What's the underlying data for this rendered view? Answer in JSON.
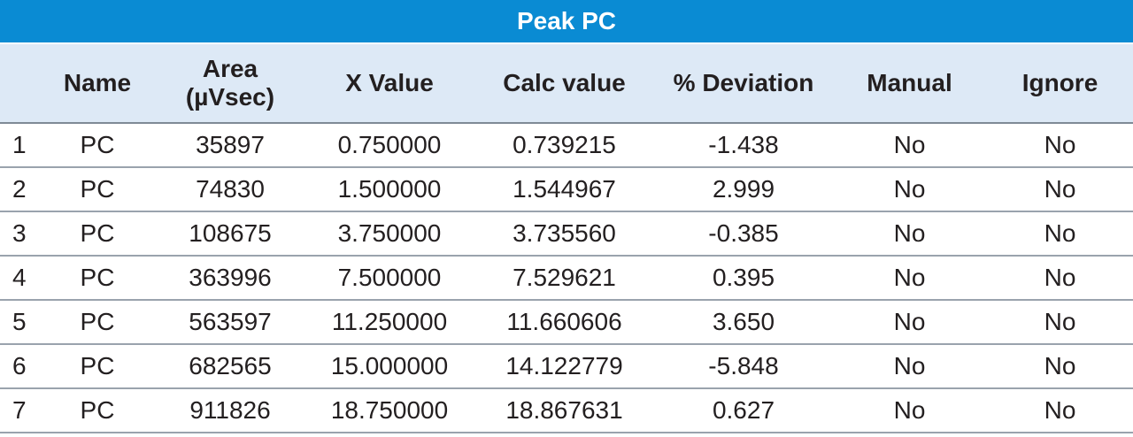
{
  "table": {
    "title": "Peak PC",
    "headers": [
      "",
      "Name",
      "Area\n(µVsec)",
      "X Value",
      "Calc value",
      "% Deviation",
      "Manual",
      "Ignore"
    ],
    "rows": [
      [
        "1",
        "PC",
        "35897",
        "0.750000",
        "0.739215",
        "-1.438",
        "No",
        "No"
      ],
      [
        "2",
        "PC",
        "74830",
        "1.500000",
        "1.544967",
        "2.999",
        "No",
        "No"
      ],
      [
        "3",
        "PC",
        "108675",
        "3.750000",
        "3.735560",
        "-0.385",
        "No",
        "No"
      ],
      [
        "4",
        "PC",
        "363996",
        "7.500000",
        "7.529621",
        "0.395",
        "No",
        "No"
      ],
      [
        "5",
        "PC",
        "563597",
        "11.250000",
        "11.660606",
        "3.650",
        "No",
        "No"
      ],
      [
        "6",
        "PC",
        "682565",
        "15.000000",
        "14.122779",
        "-5.848",
        "No",
        "No"
      ],
      [
        "7",
        "PC",
        "911826",
        "18.750000",
        "18.867631",
        "0.627",
        "No",
        "No"
      ]
    ]
  },
  "colors": {
    "title_bg": "#0a8bd3",
    "header_bg": "#dde9f6",
    "row_divider": "#9aa3ad"
  }
}
